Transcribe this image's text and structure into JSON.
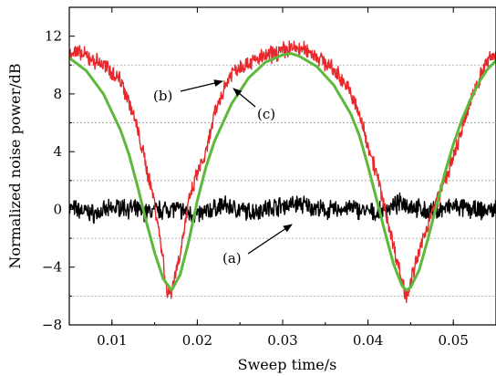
{
  "chart_data": {
    "type": "line",
    "title": "",
    "xlabel": "Sweep time/s",
    "ylabel": "Normalized noise power/dB",
    "xlim": [
      0.005,
      0.055
    ],
    "ylim": [
      -8,
      14
    ],
    "xticks": [
      0.01,
      0.02,
      0.03,
      0.04,
      0.05
    ],
    "yticks": [
      -8,
      -4,
      0,
      4,
      8,
      12
    ],
    "xtick_labels": [
      "0.01",
      "0.02",
      "0.03",
      "0.04",
      "0.05"
    ],
    "ytick_labels": [
      "−8",
      "−4",
      "0",
      "4",
      "8",
      "12"
    ],
    "grid_y_dashed": [
      -6,
      -2,
      2,
      6,
      10
    ],
    "series": [
      {
        "name": "",
        "label": "(a)",
        "color": "#000000",
        "x": [
          0.005,
          0.008,
          0.011,
          0.014,
          0.017,
          0.02,
          0.023,
          0.026,
          0.029,
          0.032,
          0.035,
          0.038,
          0.041,
          0.044,
          0.047,
          0.05,
          0.053,
          0.055
        ],
        "y": [
          0.1,
          -0.3,
          0.2,
          -0.2,
          0.1,
          -0.4,
          0.3,
          -0.2,
          0.2,
          0.4,
          -0.1,
          0.1,
          -0.3,
          0.5,
          -0.2,
          0.2,
          -0.1,
          0.0
        ]
      },
      {
        "name": "",
        "label": "(b)",
        "color": "#e8282b",
        "x": [
          0.005,
          0.007,
          0.009,
          0.011,
          0.012,
          0.013,
          0.014,
          0.015,
          0.016,
          0.0165,
          0.017,
          0.018,
          0.019,
          0.02,
          0.021,
          0.022,
          0.023,
          0.024,
          0.025,
          0.027,
          0.029,
          0.031,
          0.033,
          0.035,
          0.037,
          0.038,
          0.039,
          0.04,
          0.041,
          0.042,
          0.043,
          0.044,
          0.0445,
          0.045,
          0.046,
          0.047,
          0.048,
          0.049,
          0.05,
          0.051,
          0.052,
          0.053,
          0.054,
          0.055
        ],
        "y": [
          11.0,
          10.6,
          10.0,
          9.0,
          7.5,
          5.5,
          3.0,
          0.5,
          -3.5,
          -6.0,
          -5.5,
          -3.0,
          0.5,
          2.5,
          3.8,
          6.5,
          8.2,
          9.5,
          9.9,
          10.4,
          10.8,
          11.2,
          11.0,
          10.2,
          9.0,
          8.0,
          6.5,
          4.5,
          2.5,
          0.0,
          -2.5,
          -5.0,
          -6.0,
          -5.0,
          -3.0,
          -1.0,
          0.5,
          2.0,
          3.5,
          5.5,
          7.5,
          9.0,
          10.3,
          10.8
        ]
      },
      {
        "name": "",
        "label": "(c)",
        "color": "#5cb93b",
        "x": [
          0.005,
          0.007,
          0.009,
          0.011,
          0.012,
          0.013,
          0.014,
          0.015,
          0.016,
          0.017,
          0.018,
          0.019,
          0.02,
          0.021,
          0.022,
          0.024,
          0.026,
          0.028,
          0.03,
          0.031,
          0.032,
          0.034,
          0.036,
          0.038,
          0.039,
          0.04,
          0.041,
          0.042,
          0.043,
          0.044,
          0.0445,
          0.045,
          0.046,
          0.047,
          0.048,
          0.049,
          0.05,
          0.051,
          0.052,
          0.053,
          0.054,
          0.055
        ],
        "y": [
          10.5,
          9.6,
          8.0,
          5.5,
          3.8,
          1.6,
          -0.8,
          -3.0,
          -4.8,
          -5.6,
          -4.5,
          -2.2,
          0.6,
          2.9,
          4.7,
          7.3,
          9.1,
          10.2,
          10.7,
          10.8,
          10.6,
          9.9,
          8.6,
          6.6,
          5.1,
          3.0,
          0.7,
          -1.6,
          -3.8,
          -5.3,
          -5.6,
          -5.4,
          -4.2,
          -2.1,
          0.2,
          2.5,
          4.5,
          6.2,
          7.6,
          8.8,
          9.7,
          10.3
        ]
      }
    ],
    "annotations": [
      {
        "text": "(a)",
        "points_to": "black curve"
      },
      {
        "text": "(b)",
        "points_to": "red curve"
      },
      {
        "text": "(c)",
        "points_to": "green curve"
      }
    ]
  }
}
